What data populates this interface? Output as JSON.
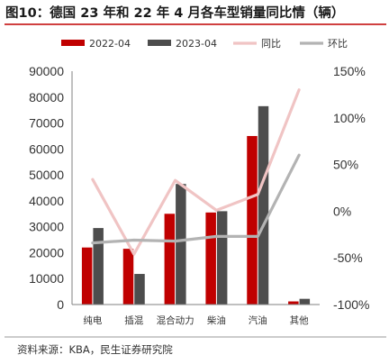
{
  "title": "图10：德国 23 年和 22 年 4 月各车型销量同比情（辆）",
  "source": "资料来源：KBA，民生证券研究院",
  "colors": {
    "title_rule": "#c00000",
    "bar_2022": "#c00000",
    "bar_2023": "#4d4d4d",
    "line_yoy": "#f0c4c4",
    "line_mom": "#b3b3b3",
    "axis": "#808080",
    "rule": "#9a9a9a"
  },
  "chart_data": {
    "type": "bar",
    "categories": [
      "纯电",
      "插混",
      "混合动力",
      "柴油",
      "汽油",
      "其他"
    ],
    "series": [
      {
        "name": "2022-04",
        "kind": "bar",
        "axis": "left",
        "values": [
          22000,
          21500,
          35000,
          35500,
          65000,
          1200
        ]
      },
      {
        "name": "2023-04",
        "kind": "bar",
        "axis": "left",
        "values": [
          29500,
          11800,
          46500,
          36000,
          76500,
          2200
        ]
      },
      {
        "name": "同比",
        "kind": "line",
        "axis": "right",
        "values": [
          34,
          -46,
          33,
          1,
          18,
          130
        ]
      },
      {
        "name": "环比",
        "kind": "line",
        "axis": "right",
        "values": [
          -34,
          -31,
          -32,
          -27,
          -27,
          60
        ]
      }
    ],
    "y_left": {
      "min": 0,
      "max": 90000,
      "ticks": [
        "0",
        "10000",
        "20000",
        "30000",
        "40000",
        "50000",
        "60000",
        "70000",
        "80000",
        "90000"
      ]
    },
    "y_right": {
      "min": -100,
      "max": 150,
      "ticks": [
        "-100%",
        "-50%",
        "0%",
        "50%",
        "100%",
        "150%"
      ]
    },
    "grid": false,
    "legend": "top"
  }
}
